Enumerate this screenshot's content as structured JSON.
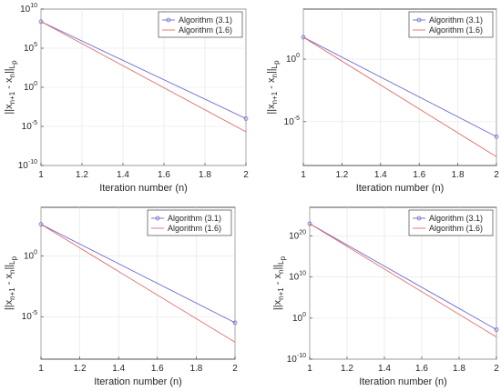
{
  "chart_data": [
    {
      "type": "line",
      "xlabel": "Iteration number (n)",
      "ylabel": {
        "main": "||x",
        "sub1": "n+1",
        "mid": " - x",
        "sub2": "n",
        "end": "||",
        "sub3": "L",
        "sub4": "p"
      },
      "x": [
        1,
        2
      ],
      "xticks": [
        "1",
        "1.2",
        "1.4",
        "1.6",
        "1.8",
        "2"
      ],
      "ylim_exp": [
        -10,
        10
      ],
      "yticks_exp": [
        -10,
        -5,
        0,
        5,
        10
      ],
      "yscale": "log",
      "grid": true,
      "legend_position": "top-right",
      "series": [
        {
          "name": "Algorithm (3.1)",
          "color": "#6b6bd6",
          "marker": "circle",
          "log10_values": [
            8.4,
            -4.0
          ]
        },
        {
          "name": "Algorithm (1.6)",
          "color": "#e36b6b",
          "marker": "none",
          "log10_values": [
            8.4,
            -5.7
          ]
        }
      ]
    },
    {
      "type": "line",
      "xlabel": "Iteration number (n)",
      "ylabel": {
        "main": "||x",
        "sub1": "n+1",
        "mid": " - x",
        "sub2": "n",
        "end": "||",
        "sub3": "L",
        "sub4": "p"
      },
      "x": [
        1,
        2
      ],
      "xticks": [
        "1",
        "1.2",
        "1.4",
        "1.6",
        "1.8",
        "2"
      ],
      "ylim_exp": [
        -8.5,
        4
      ],
      "yticks_exp": [
        -5,
        0
      ],
      "yscale": "log",
      "grid": true,
      "legend_position": "top-right",
      "series": [
        {
          "name": "Algorithm (3.1)",
          "color": "#6b6bd6",
          "marker": "circle",
          "log10_values": [
            1.75,
            -6.2
          ]
        },
        {
          "name": "Algorithm (1.6)",
          "color": "#e36b6b",
          "marker": "none",
          "log10_values": [
            1.75,
            -7.8
          ]
        }
      ]
    },
    {
      "type": "line",
      "xlabel": "Iteration number (n)",
      "ylabel": {
        "main": "||x",
        "sub1": "n+1",
        "mid": " - x",
        "sub2": "n",
        "end": "||",
        "sub3": "L",
        "sub4": "p"
      },
      "x": [
        1,
        2
      ],
      "xticks": [
        "1",
        "1.2",
        "1.4",
        "1.6",
        "1.8",
        "2"
      ],
      "ylim_exp": [
        -8.5,
        4
      ],
      "yticks_exp": [
        -5,
        0
      ],
      "yscale": "log",
      "grid": true,
      "legend_position": "top-right",
      "series": [
        {
          "name": "Algorithm (3.1)",
          "color": "#6b6bd6",
          "marker": "circle",
          "log10_values": [
            2.6,
            -5.5
          ]
        },
        {
          "name": "Algorithm (1.6)",
          "color": "#e36b6b",
          "marker": "none",
          "log10_values": [
            2.6,
            -7.1
          ]
        }
      ]
    },
    {
      "type": "line",
      "xlabel": "Iteration number (n)",
      "ylabel": {
        "main": "||x",
        "sub1": "n+1",
        "mid": " - x",
        "sub2": "n",
        "end": "||",
        "sub3": "L",
        "sub4": "p"
      },
      "x": [
        1,
        2
      ],
      "xticks": [
        "1",
        "1.2",
        "1.4",
        "1.6",
        "1.8",
        "2"
      ],
      "ylim_exp": [
        -10,
        27
      ],
      "yticks_exp": [
        -10,
        0,
        10,
        20
      ],
      "yscale": "log",
      "grid": true,
      "legend_position": "top-right",
      "series": [
        {
          "name": "Algorithm (3.1)",
          "color": "#6b6bd6",
          "marker": "circle",
          "log10_values": [
            23.0,
            -2.8
          ]
        },
        {
          "name": "Algorithm (1.6)",
          "color": "#e36b6b",
          "marker": "none",
          "log10_values": [
            23.0,
            -4.6
          ]
        }
      ]
    }
  ]
}
